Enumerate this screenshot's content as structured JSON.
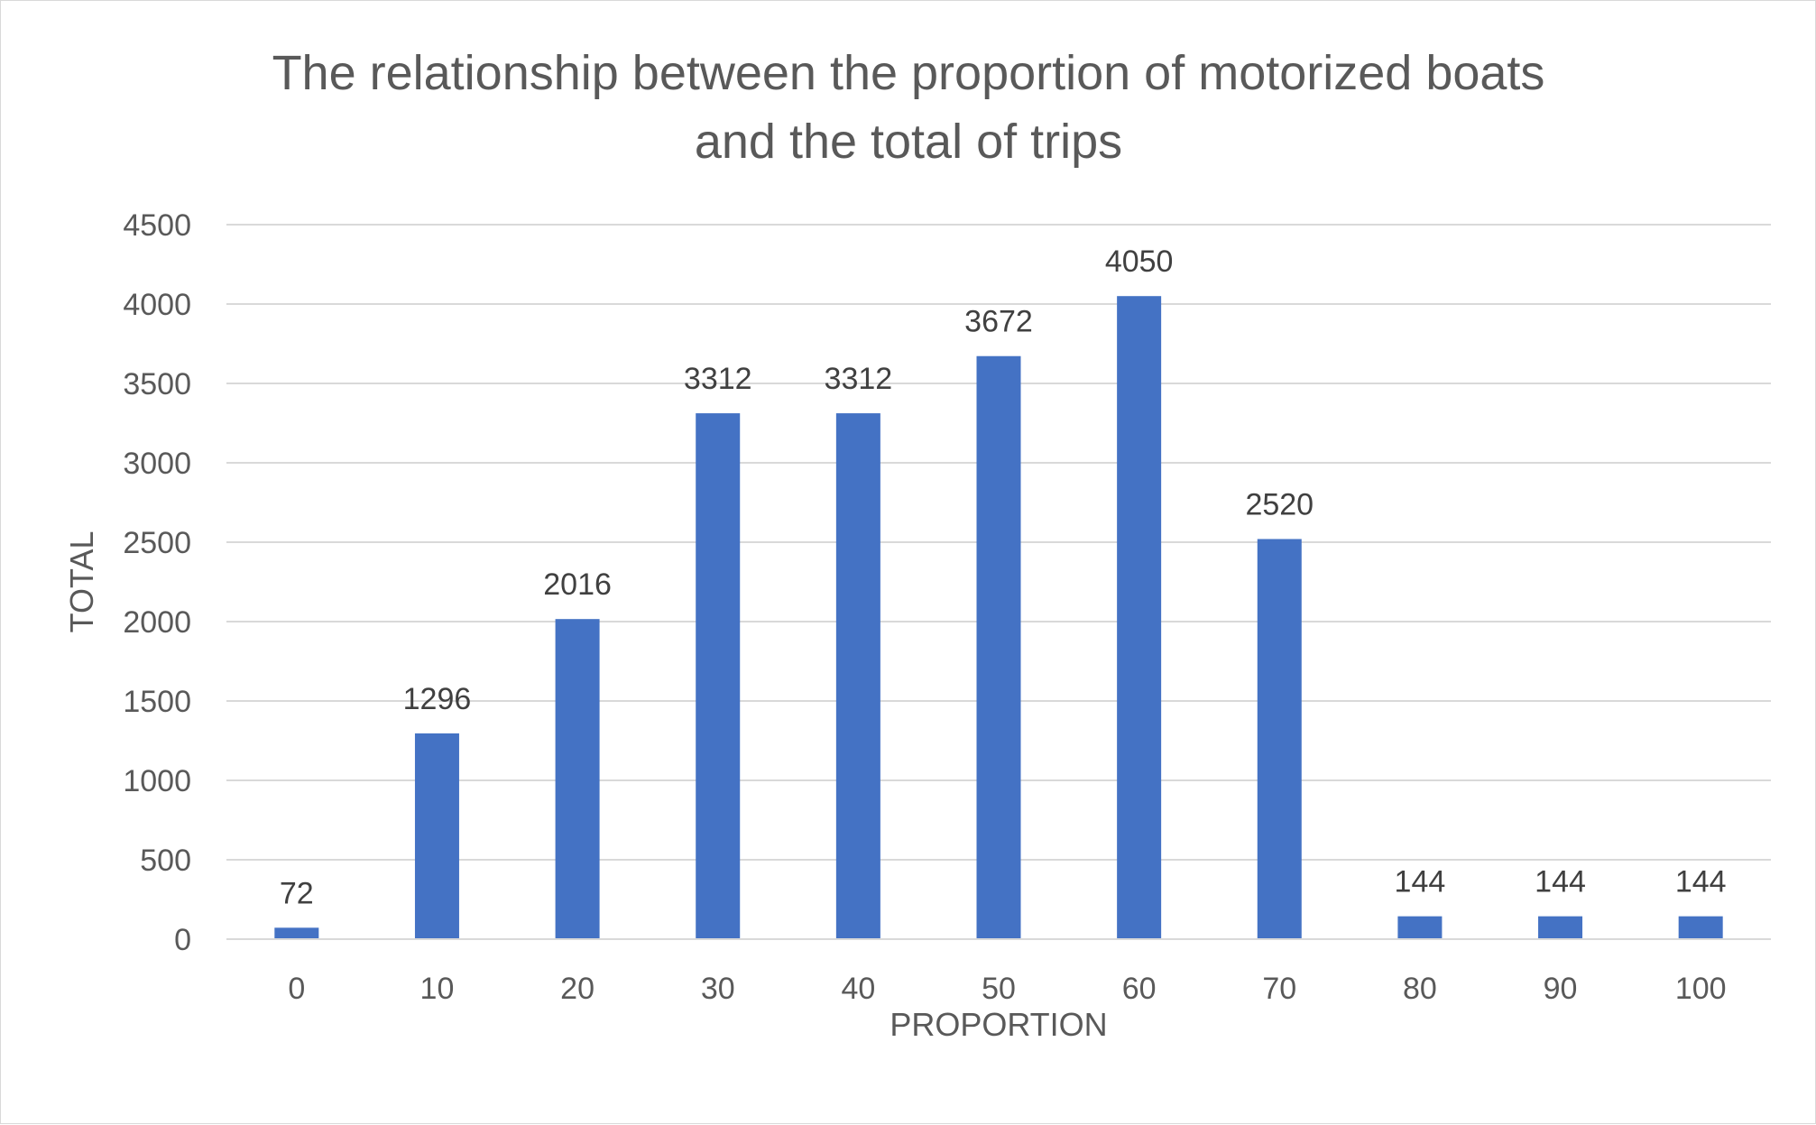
{
  "chart_data": {
    "type": "bar",
    "title_lines": [
      "The relationship between the proportion of motorized boats",
      "and the total of trips"
    ],
    "xlabel": "PROPORTION",
    "ylabel": "TOTAL",
    "categories": [
      "0",
      "10",
      "20",
      "30",
      "40",
      "50",
      "60",
      "70",
      "80",
      "90",
      "100"
    ],
    "values": [
      72,
      1296,
      2016,
      3312,
      3312,
      3672,
      4050,
      2520,
      144,
      144,
      144
    ],
    "data_labels": [
      "72",
      "1296",
      "2016",
      "3312",
      "3312",
      "3672",
      "4050",
      "2520",
      "144",
      "144",
      "144"
    ],
    "ylim": [
      0,
      4500
    ],
    "yticks": [
      "0",
      "500",
      "1000",
      "1500",
      "2000",
      "2500",
      "3000",
      "3500",
      "4000",
      "4500"
    ],
    "ytick_values": [
      0,
      500,
      1000,
      1500,
      2000,
      2500,
      3000,
      3500,
      4000,
      4500
    ],
    "grid": true,
    "legend": "none",
    "bar_color": "#4472C4",
    "grid_color": "#d9d9d9"
  }
}
